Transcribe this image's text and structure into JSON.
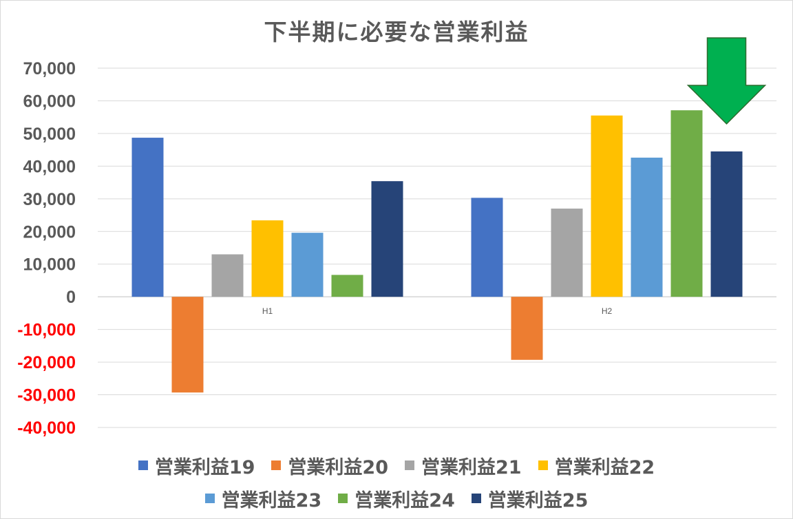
{
  "chart_data": {
    "type": "bar",
    "title": "下半期に必要な営業利益",
    "xlabel": "",
    "ylabel": "",
    "categories": [
      "H1",
      "H2"
    ],
    "ylim": [
      -40000,
      70000
    ],
    "yticks": [
      "70,000",
      "60,000",
      "50,000",
      "40,000",
      "30,000",
      "20,000",
      "10,000",
      "0",
      "-10,000",
      "-20,000",
      "-30,000",
      "-40,000"
    ],
    "ytick_values": [
      70000,
      60000,
      50000,
      40000,
      30000,
      20000,
      10000,
      0,
      -10000,
      -20000,
      -30000,
      -40000
    ],
    "grid": true,
    "legend_position": "bottom",
    "negative_tick_color": "#ff0000",
    "positive_tick_color": "#595959",
    "series": [
      {
        "name": "営業利益19",
        "color": "#4472c4",
        "values": [
          48700,
          30300
        ]
      },
      {
        "name": "営業利益20",
        "color": "#ed7d31",
        "values": [
          -29300,
          -19300
        ]
      },
      {
        "name": "営業利益21",
        "color": "#a5a5a5",
        "values": [
          13000,
          27000
        ]
      },
      {
        "name": "営業利益22",
        "color": "#ffc000",
        "values": [
          23400,
          55500
        ]
      },
      {
        "name": "営業利益23",
        "color": "#5b9bd5",
        "values": [
          19600,
          42600
        ]
      },
      {
        "name": "営業利益24",
        "color": "#70ad47",
        "values": [
          6700,
          57100
        ]
      },
      {
        "name": "営業利益25",
        "color": "#264478",
        "values": [
          35400,
          44500
        ]
      }
    ],
    "annotations": [
      {
        "type": "arrow",
        "direction": "down",
        "color": "#00b050",
        "target": "H2 営業利益25"
      }
    ]
  }
}
